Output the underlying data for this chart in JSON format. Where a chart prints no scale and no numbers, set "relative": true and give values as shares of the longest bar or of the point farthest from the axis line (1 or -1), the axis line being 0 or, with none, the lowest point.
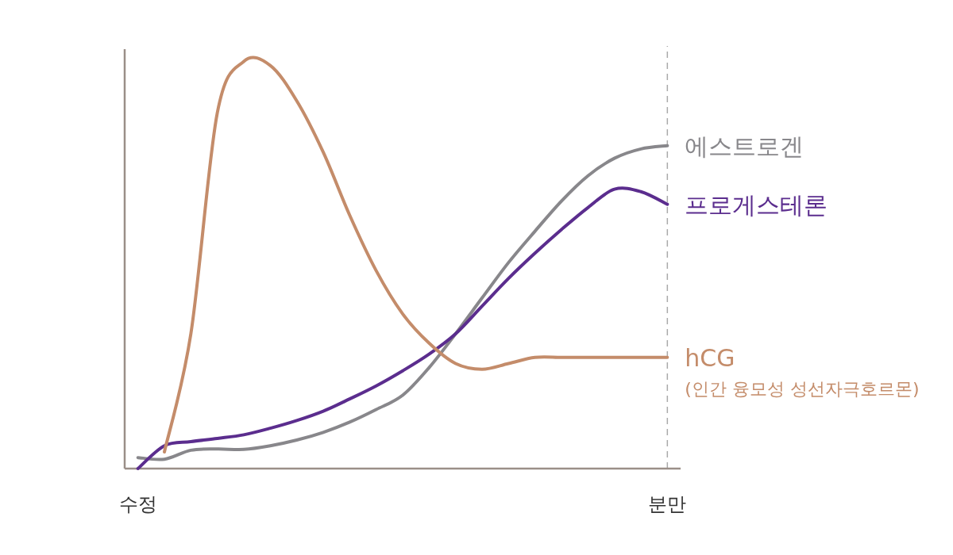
{
  "chart_data": {
    "type": "line",
    "relative": true,
    "categories": [
      "수정",
      null,
      null,
      null,
      null,
      null,
      null,
      null,
      null,
      null,
      null,
      null,
      null,
      null,
      null,
      null,
      null,
      null,
      null,
      null,
      "분만"
    ],
    "ref_lines": [
      {
        "axis": "x",
        "value": "분만",
        "color": "#aaaaaa",
        "line_style": "dashed"
      }
    ],
    "annotations": [
      "(인간 융모성 성선자극호르몬)"
    ],
    "series": [
      {
        "name": "에스트로겐",
        "color": "#88878b",
        "values": [
          0.027,
          0.023,
          0.045,
          0.048,
          0.047,
          0.056,
          0.07,
          0.089,
          0.114,
          0.145,
          0.18,
          0.248,
          0.331,
          0.419,
          0.506,
          0.583,
          0.657,
          0.719,
          0.762,
          0.785,
          0.793
        ]
      },
      {
        "name": "프로게스테론",
        "color": "#5b2d8e",
        "values": [
          0,
          0.056,
          0.066,
          0.074,
          0.083,
          0.099,
          0.118,
          0.141,
          0.171,
          0.203,
          0.24,
          0.281,
          0.331,
          0.399,
          0.467,
          0.529,
          0.587,
          0.641,
          0.686,
          0.68,
          0.649
        ]
      },
      {
        "name": "hCG",
        "color": "#c48c6a",
        "values": [
          null,
          0.041,
          0.331,
          0.874,
          1.0,
          0.99,
          0.903,
          0.777,
          0.622,
          0.486,
          0.38,
          0.308,
          0.258,
          0.244,
          0.258,
          0.273,
          0.273,
          0.273,
          0.273,
          0.273,
          0.273
        ]
      }
    ]
  }
}
